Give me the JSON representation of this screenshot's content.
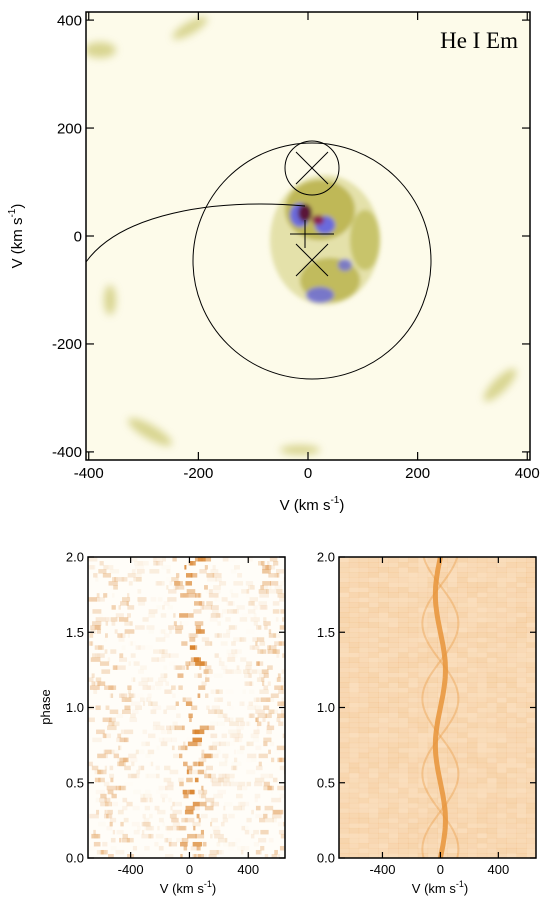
{
  "chart_data": [
    {
      "type": "doppler-map",
      "title": "He I Em",
      "xlabel": {
        "text": "V (km s",
        "sup": "-1",
        "end": ")"
      },
      "ylabel": {
        "text": "V (km s",
        "sup": "-1",
        "end": ")"
      },
      "xlim": [
        -405,
        405
      ],
      "ylim": [
        -415,
        415
      ],
      "xticks": [
        -400,
        -200,
        0,
        200,
        400
      ],
      "yticks": [
        -400,
        -200,
        0,
        200,
        400
      ]
    },
    {
      "type": "trailed-spectra",
      "variant": "observed",
      "color": "#d9822b",
      "xlabel": {
        "text": "V (km s",
        "sup": "-1",
        "end": ")"
      },
      "ylabel": "phase",
      "xlim": [
        -690,
        650
      ],
      "ylim": [
        0,
        2
      ],
      "xticks": [
        -400,
        0,
        400
      ],
      "yticks": [
        {
          "value": 0,
          "label": "0.0"
        },
        {
          "value": 0.5,
          "label": "0.5"
        },
        {
          "value": 1,
          "label": "1.0"
        },
        {
          "value": 1.5,
          "label": "1.5"
        },
        {
          "value": 2,
          "label": "2.0"
        }
      ]
    },
    {
      "type": "trailed-spectra",
      "variant": "reconstructed",
      "color": "#e8943a",
      "xlabel": {
        "text": "V (km s",
        "sup": "-1",
        "end": ")"
      },
      "xlim": [
        -700,
        660
      ],
      "ylim": [
        0,
        2
      ],
      "xticks": [
        -400,
        0,
        400
      ],
      "yticks": [
        {
          "value": 0,
          "label": "0.0"
        },
        {
          "value": 0.5,
          "label": "0.5"
        },
        {
          "value": 1,
          "label": "1.0"
        },
        {
          "value": 1.5,
          "label": "1.5"
        },
        {
          "value": 2,
          "label": "2.0"
        }
      ]
    }
  ]
}
